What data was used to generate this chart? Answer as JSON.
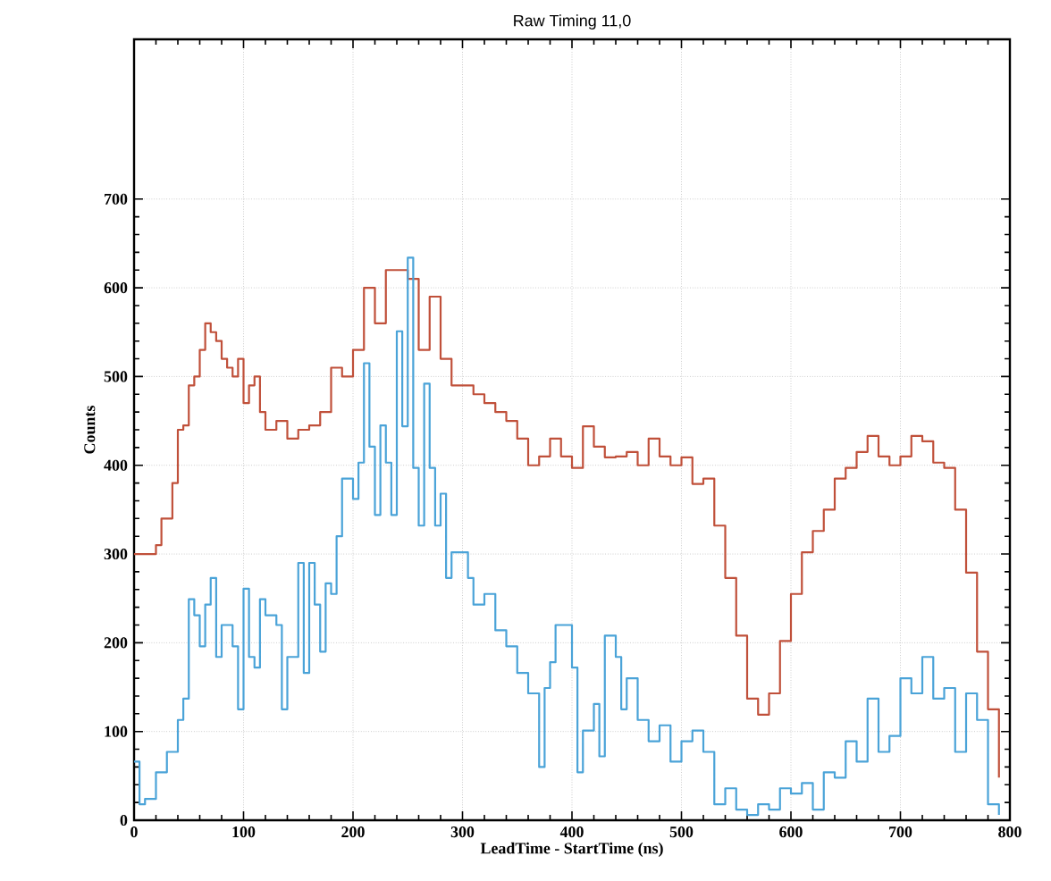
{
  "chart_data": {
    "type": "step",
    "title": "Raw Timing 11,0",
    "xlabel": "LeadTime - StartTime (ns)",
    "ylabel": "Counts",
    "xlim": [
      0,
      800
    ],
    "ylim": [
      0,
      880
    ],
    "xticks": [
      0,
      100,
      200,
      300,
      400,
      500,
      600,
      700,
      800
    ],
    "yticks": [
      0,
      100,
      200,
      300,
      400,
      500,
      600,
      700
    ],
    "grid": true,
    "marker": "none",
    "line_style": "solid",
    "series": [
      {
        "color": "#c0503a",
        "x": [
          0,
          10,
          20,
          25,
          30,
          35,
          40,
          45,
          50,
          55,
          60,
          65,
          70,
          75,
          80,
          85,
          90,
          95,
          100,
          105,
          110,
          115,
          120,
          130,
          140,
          150,
          160,
          170,
          180,
          190,
          200,
          210,
          220,
          230,
          240,
          250,
          260,
          270,
          280,
          290,
          300,
          310,
          320,
          330,
          340,
          350,
          360,
          370,
          380,
          390,
          400,
          410,
          420,
          430,
          440,
          450,
          460,
          470,
          480,
          490,
          500,
          510,
          520,
          530,
          540,
          550,
          560,
          570,
          580,
          590,
          600,
          610,
          620,
          630,
          640,
          650,
          660,
          670,
          680,
          690,
          700,
          710,
          720,
          730,
          740,
          750,
          760,
          770,
          780,
          790
        ],
        "values": [
          300,
          300,
          310,
          340,
          340,
          380,
          440,
          445,
          490,
          500,
          530,
          560,
          550,
          540,
          520,
          510,
          500,
          520,
          470,
          490,
          500,
          460,
          440,
          450,
          430,
          440,
          445,
          460,
          510,
          500,
          530,
          600,
          560,
          620,
          620,
          610,
          530,
          590,
          520,
          490,
          490,
          480,
          470,
          460,
          450,
          430,
          400,
          410,
          430,
          410,
          397,
          444,
          421,
          409,
          410,
          415,
          400,
          430,
          410,
          400,
          409,
          379,
          385,
          332,
          273,
          208,
          137,
          119,
          143,
          202,
          255,
          302,
          326,
          350,
          385,
          397,
          415,
          433,
          410,
          400,
          410,
          433,
          427,
          403,
          397,
          350,
          279,
          190,
          125,
          48
        ]
      },
      {
        "color": "#4aa3d8",
        "x": [
          0,
          5,
          10,
          20,
          30,
          40,
          45,
          50,
          55,
          60,
          65,
          70,
          75,
          80,
          90,
          95,
          100,
          105,
          110,
          115,
          120,
          130,
          135,
          140,
          150,
          155,
          160,
          165,
          170,
          175,
          180,
          185,
          190,
          200,
          205,
          210,
          215,
          220,
          225,
          230,
          235,
          240,
          245,
          250,
          255,
          260,
          265,
          270,
          275,
          280,
          285,
          290,
          300,
          305,
          310,
          320,
          330,
          340,
          350,
          360,
          370,
          375,
          380,
          385,
          400,
          405,
          410,
          420,
          425,
          430,
          440,
          445,
          450,
          460,
          470,
          480,
          490,
          500,
          510,
          520,
          530,
          540,
          550,
          560,
          570,
          580,
          590,
          600,
          610,
          620,
          630,
          640,
          650,
          660,
          670,
          680,
          690,
          700,
          710,
          720,
          730,
          740,
          750,
          760,
          770,
          780,
          790
        ],
        "values": [
          66,
          18,
          24,
          54,
          77,
          113,
          137,
          249,
          231,
          196,
          243,
          273,
          184,
          220,
          196,
          125,
          261,
          184,
          172,
          249,
          231,
          220,
          125,
          184,
          290,
          166,
          290,
          243,
          190,
          267,
          255,
          320,
          385,
          362,
          403,
          515,
          421,
          344,
          445,
          403,
          344,
          551,
          444,
          634,
          397,
          332,
          492,
          397,
          332,
          368,
          273,
          302,
          302,
          273,
          243,
          255,
          214,
          196,
          166,
          143,
          60,
          149,
          178,
          220,
          172,
          54,
          101,
          131,
          72,
          208,
          184,
          125,
          160,
          113,
          89,
          107,
          66,
          89,
          101,
          77,
          18,
          36,
          12,
          6,
          18,
          12,
          36,
          30,
          42,
          12,
          54,
          48,
          89,
          66,
          137,
          77,
          95,
          160,
          143,
          184,
          137,
          149,
          77,
          143,
          113,
          18,
          6
        ]
      }
    ]
  }
}
